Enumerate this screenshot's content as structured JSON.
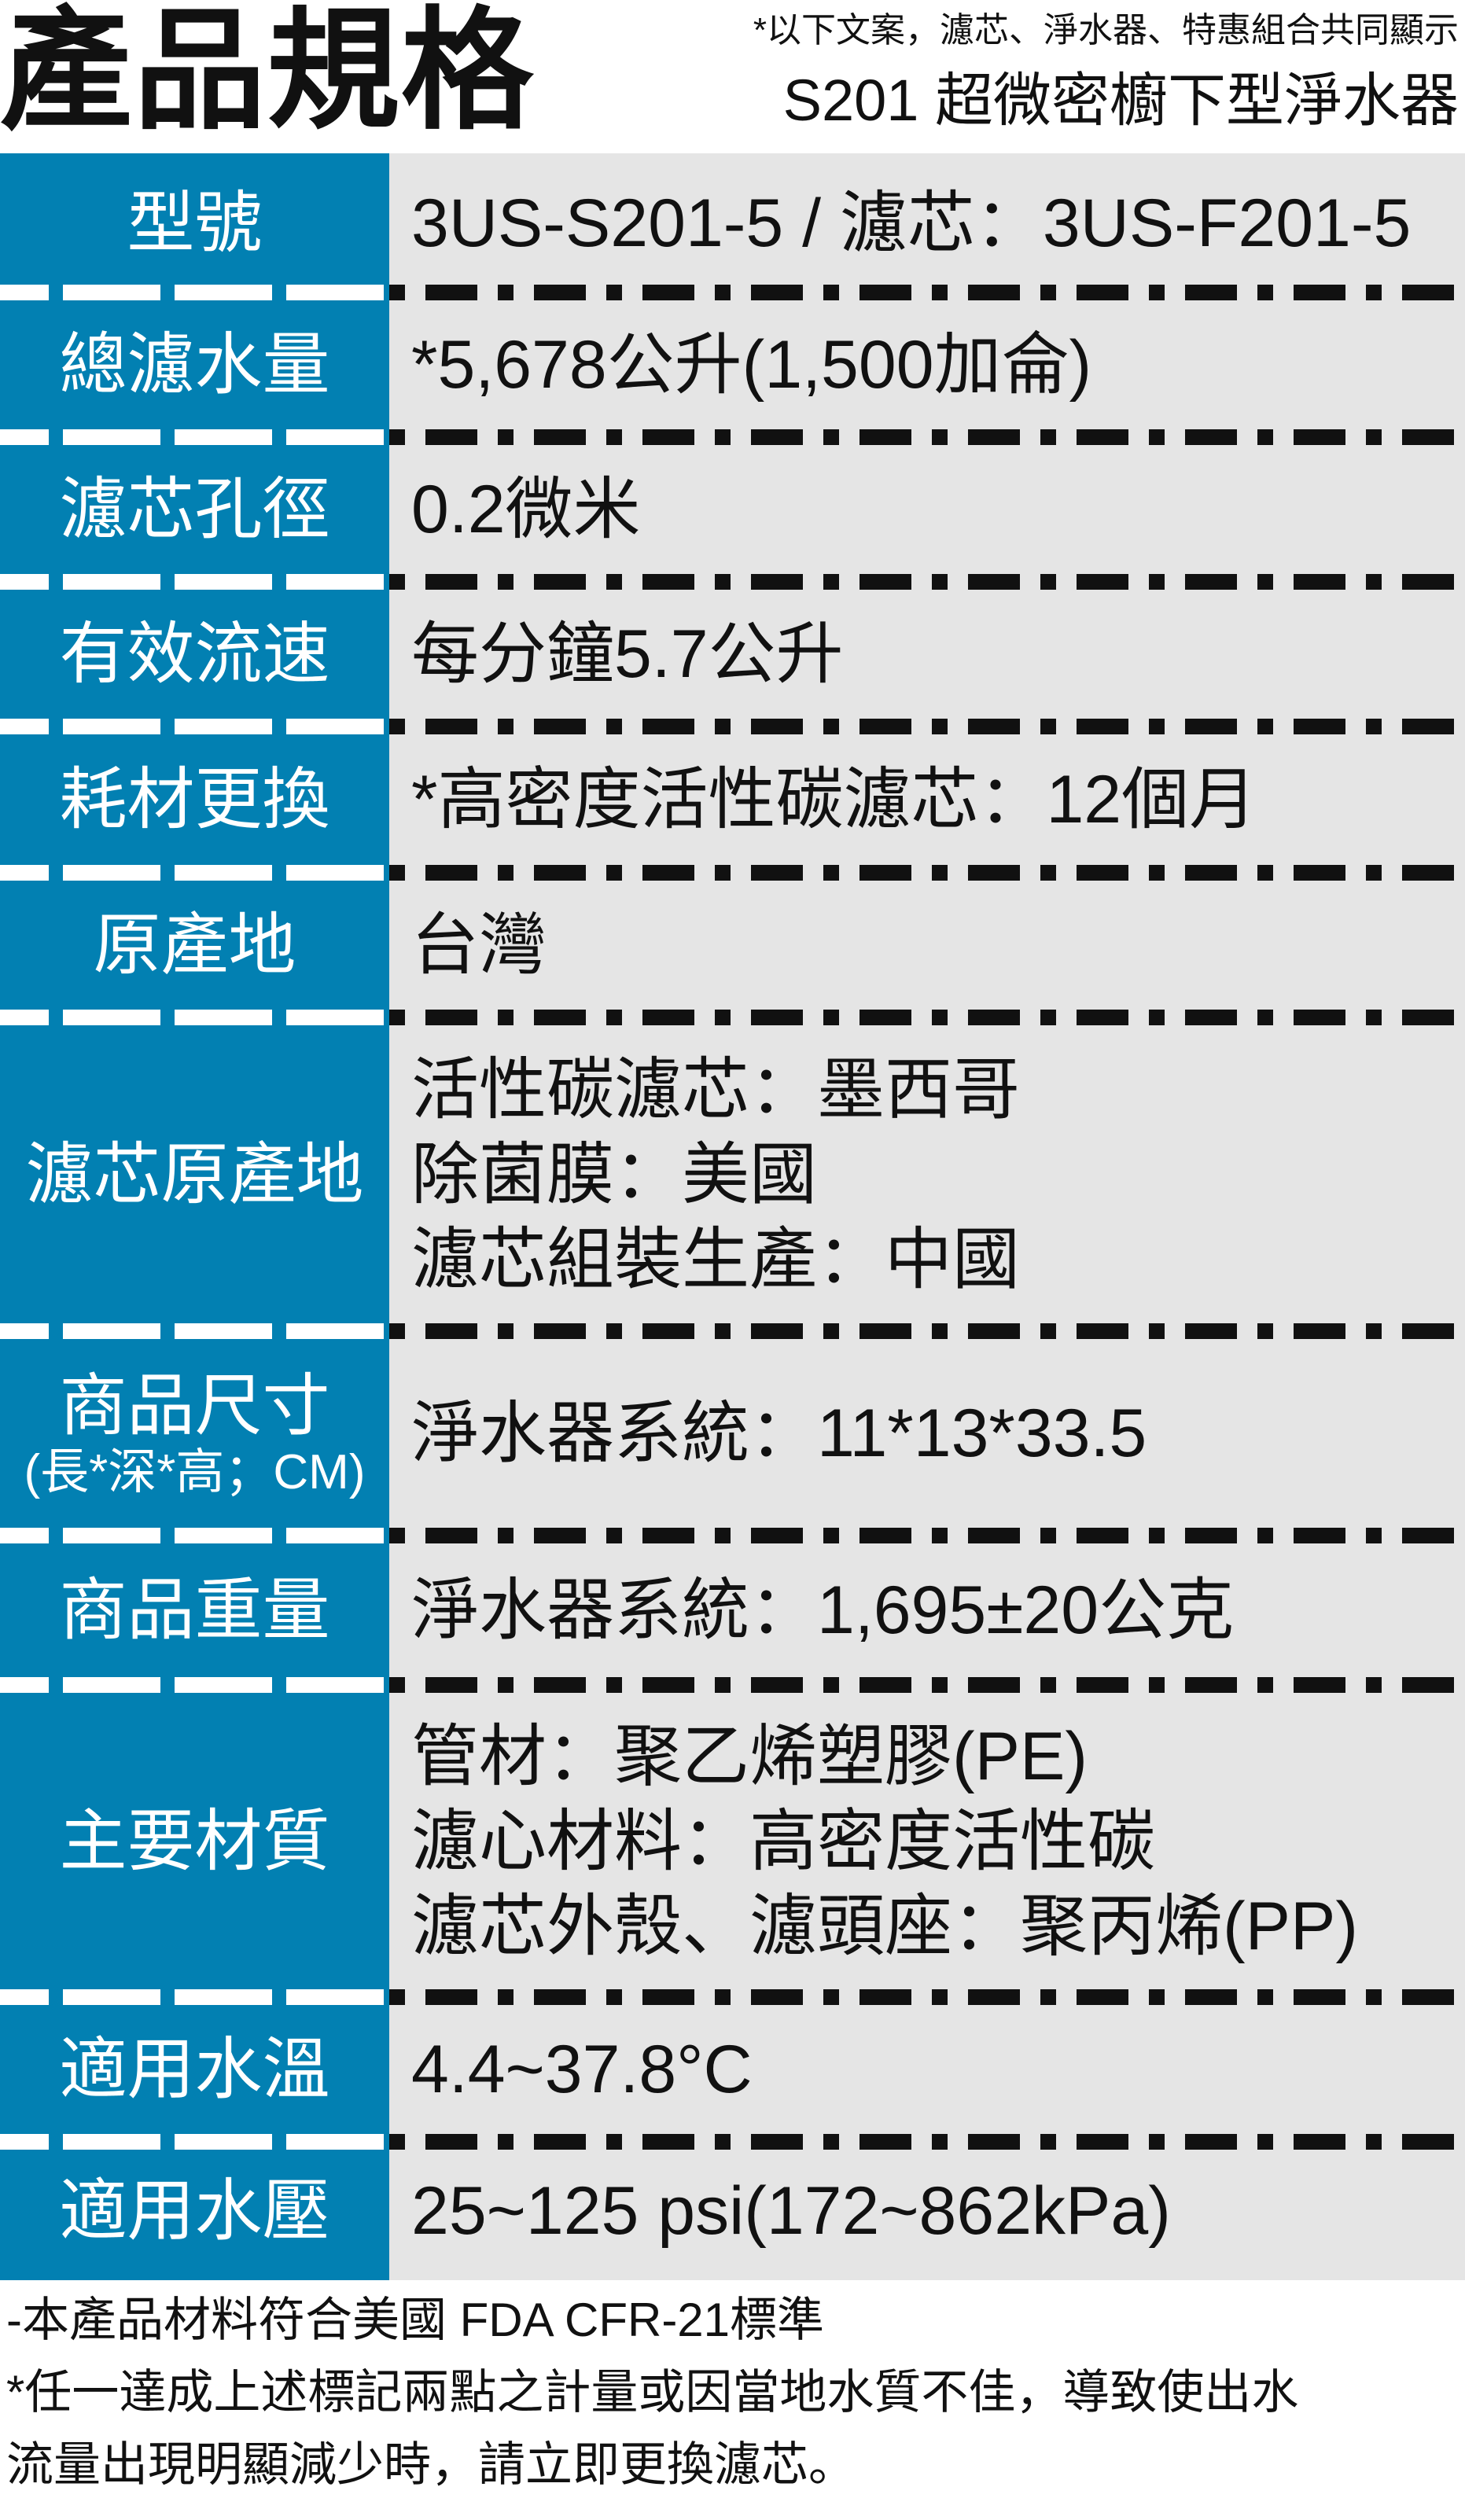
{
  "header": {
    "title": "產品規格",
    "note": "*以下文案，濾芯、淨水器、特惠組合共同顯示",
    "subtitle": "S201 超微密櫥下型淨水器"
  },
  "colors": {
    "label_bg": "#0280b2",
    "value_bg": "#e5e5e5"
  },
  "specs": [
    {
      "label": "型號",
      "values": [
        "3US-S201-5 / 濾芯：3US-F201-5"
      ]
    },
    {
      "label": "總濾水量",
      "values": [
        "*5,678公升(1,500加侖)"
      ]
    },
    {
      "label": "濾芯孔徑",
      "values": [
        "0.2微米"
      ]
    },
    {
      "label": "有效流速",
      "values": [
        "每分鐘5.7公升"
      ]
    },
    {
      "label": "耗材更換",
      "values": [
        "*高密度活性碳濾芯：12個月"
      ]
    },
    {
      "label": "原產地",
      "values": [
        "台灣"
      ]
    },
    {
      "label": "濾芯原產地",
      "values": [
        "活性碳濾芯：墨西哥",
        "除菌膜：美國",
        "濾芯組裝生產：中國"
      ]
    },
    {
      "label": "商品尺寸",
      "sublabel": "(長*深*高；CM)",
      "values": [
        "淨水器系統：11*13*33.5"
      ]
    },
    {
      "label": "商品重量",
      "values": [
        "淨水器系統：1,695±20公克"
      ]
    },
    {
      "label": "主要材質",
      "values": [
        "管材：聚乙烯塑膠(PE)",
        "濾心材料：高密度活性碳",
        "濾芯外殼、濾頭座：聚丙烯(PP)"
      ]
    },
    {
      "label": "適用水溫",
      "values": [
        "4.4~37.8°C"
      ]
    },
    {
      "label": "適用水壓",
      "values": [
        "25~125 psi(172~862kPa)"
      ]
    }
  ],
  "footer": [
    "-本產品材料符合美國 FDA CFR-21標準",
    "*任一達成上述標記兩點之計量或因當地水質不佳，導致使出水",
    "流量出現明顯減少時，請立即更換濾芯。"
  ]
}
